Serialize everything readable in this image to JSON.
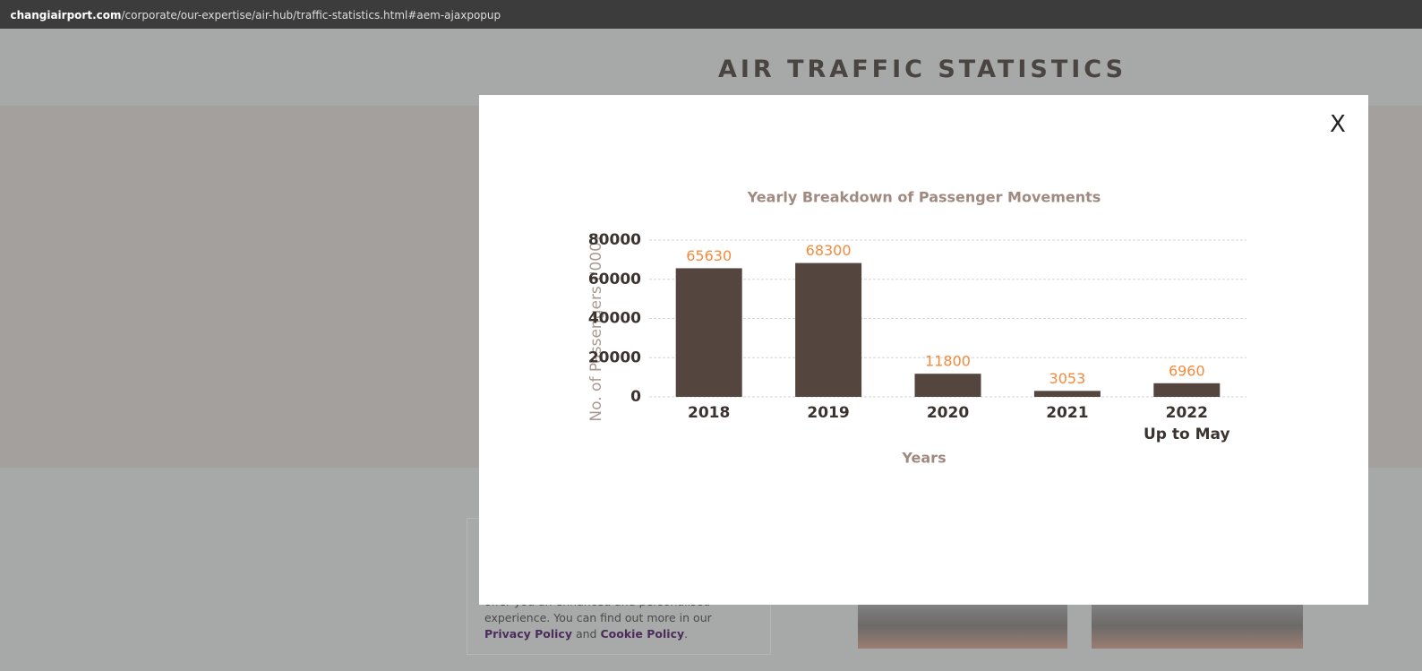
{
  "browser": {
    "domain": "changiairport.com",
    "path": "/corporate/our-expertise/air-hub/traffic-statistics.html#aem-ajaxpopup"
  },
  "header": {
    "title": "AIR TRAFFIC STATISTICS"
  },
  "modal": {
    "close": "X"
  },
  "cookie": {
    "partial_line": "offer you an enhanced and personalised",
    "text": "experience. You can find out more in our",
    "privacy": "Privacy Policy",
    "and": "and",
    "cookie": "Cookie Policy",
    "end": "."
  },
  "chart_data": {
    "type": "bar",
    "title": "Yearly Breakdown of Passenger Movements",
    "y_label": "No. of Passengers ('000)",
    "x_label": "Years",
    "categories": [
      "2018",
      "2019",
      "2020",
      "2021",
      "2022\nUp to May"
    ],
    "values": [
      65630,
      68300,
      11800,
      3053,
      6960
    ],
    "color": "#54463f",
    "label_color": "#f58a3c",
    "ylim": [
      0,
      80000
    ],
    "yticks": [
      0,
      20000,
      40000,
      60000,
      80000
    ],
    "grid": true
  }
}
